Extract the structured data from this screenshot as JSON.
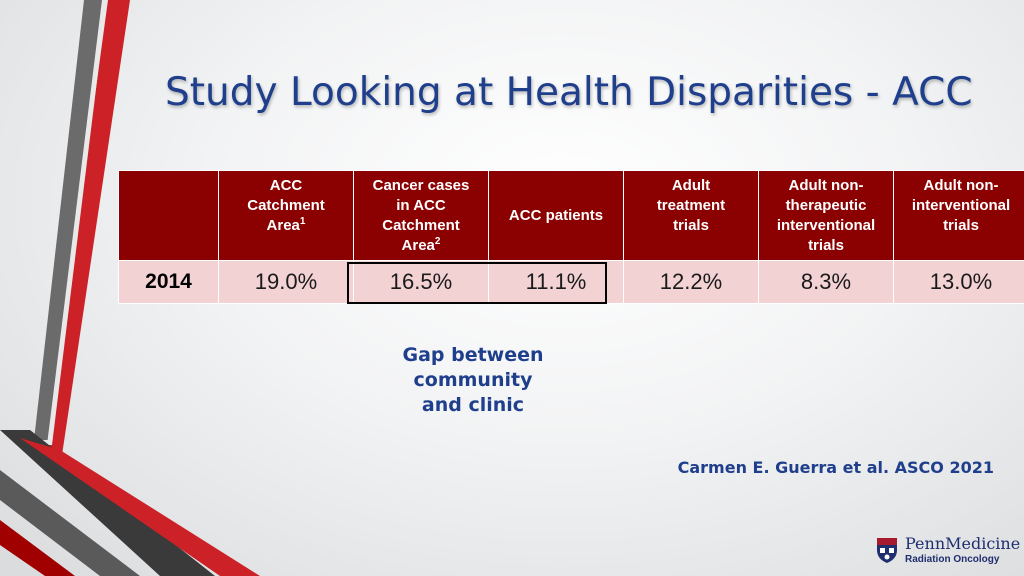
{
  "slide": {
    "title": "Study Looking at Health Disparities - ACC",
    "table": {
      "headers": [
        {
          "lines": []
        },
        {
          "lines": [
            "ACC",
            "Catchment",
            "Area"
          ],
          "sup": "1"
        },
        {
          "lines": [
            "Cancer cases",
            "in ACC",
            "Catchment",
            "Area"
          ],
          "sup": "2"
        },
        {
          "lines": [
            "ACC patients"
          ]
        },
        {
          "lines": [
            "Adult",
            "treatment",
            "trials"
          ]
        },
        {
          "lines": [
            "Adult non-",
            "therapeutic",
            "interventional",
            "trials"
          ]
        },
        {
          "lines": [
            "Adult non-",
            "interventional",
            "trials"
          ]
        }
      ],
      "row": {
        "label": "2014",
        "values": [
          "19.0%",
          "16.5%",
          "11.1%",
          "12.2%",
          "8.3%",
          "13.0%"
        ]
      }
    },
    "gap_note": [
      "Gap between",
      "community",
      "and clinic"
    ],
    "citation": "Carmen E. Guerra et al. ASCO 2021",
    "logo": {
      "name": "PennMedicine",
      "department": "Radiation Oncology"
    },
    "colors": {
      "header_bg": "#8b0000",
      "cell_bg": "#f3d2d3",
      "title": "#1f3f8c",
      "accent_red": "#cc2127",
      "accent_gray": "#5a5a5a"
    }
  }
}
